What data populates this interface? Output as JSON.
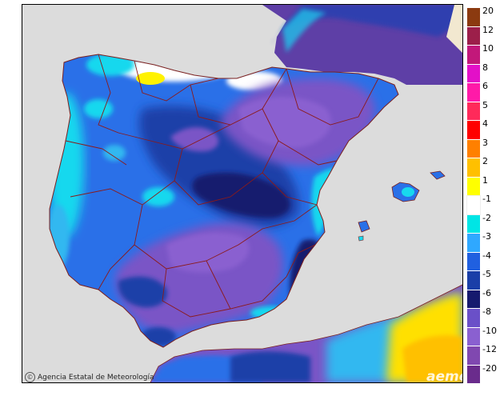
{
  "credit": {
    "text": "Agencia Estatal de Meteorología"
  },
  "logo": {
    "text": "aemet"
  },
  "legend": {
    "items": [
      {
        "label": "20",
        "color": "#8b3a10"
      },
      {
        "label": "12",
        "color": "#9c1f4a"
      },
      {
        "label": "10",
        "color": "#c2187a"
      },
      {
        "label": "8",
        "color": "#e310c8"
      },
      {
        "label": "6",
        "color": "#ff1aa8"
      },
      {
        "label": "5",
        "color": "#ff2a5a"
      },
      {
        "label": "4",
        "color": "#ff0000"
      },
      {
        "label": "3",
        "color": "#ff8000"
      },
      {
        "label": "2",
        "color": "#ffc000"
      },
      {
        "label": "1",
        "color": "#ffff00"
      },
      {
        "label": "-1",
        "color": "#ffffff"
      },
      {
        "label": "-2",
        "color": "#00e5e5"
      },
      {
        "label": "-3",
        "color": "#2fa8ff"
      },
      {
        "label": "-4",
        "color": "#2060e0"
      },
      {
        "label": "-5",
        "color": "#1a3fa8"
      },
      {
        "label": "-6",
        "color": "#161a6e"
      },
      {
        "label": "-8",
        "color": "#6a50c8"
      },
      {
        "label": "-10",
        "color": "#8a60d0"
      },
      {
        "label": "-12",
        "color": "#8048b0"
      },
      {
        "label": "-20",
        "color": "#6a2c8c"
      }
    ]
  }
}
